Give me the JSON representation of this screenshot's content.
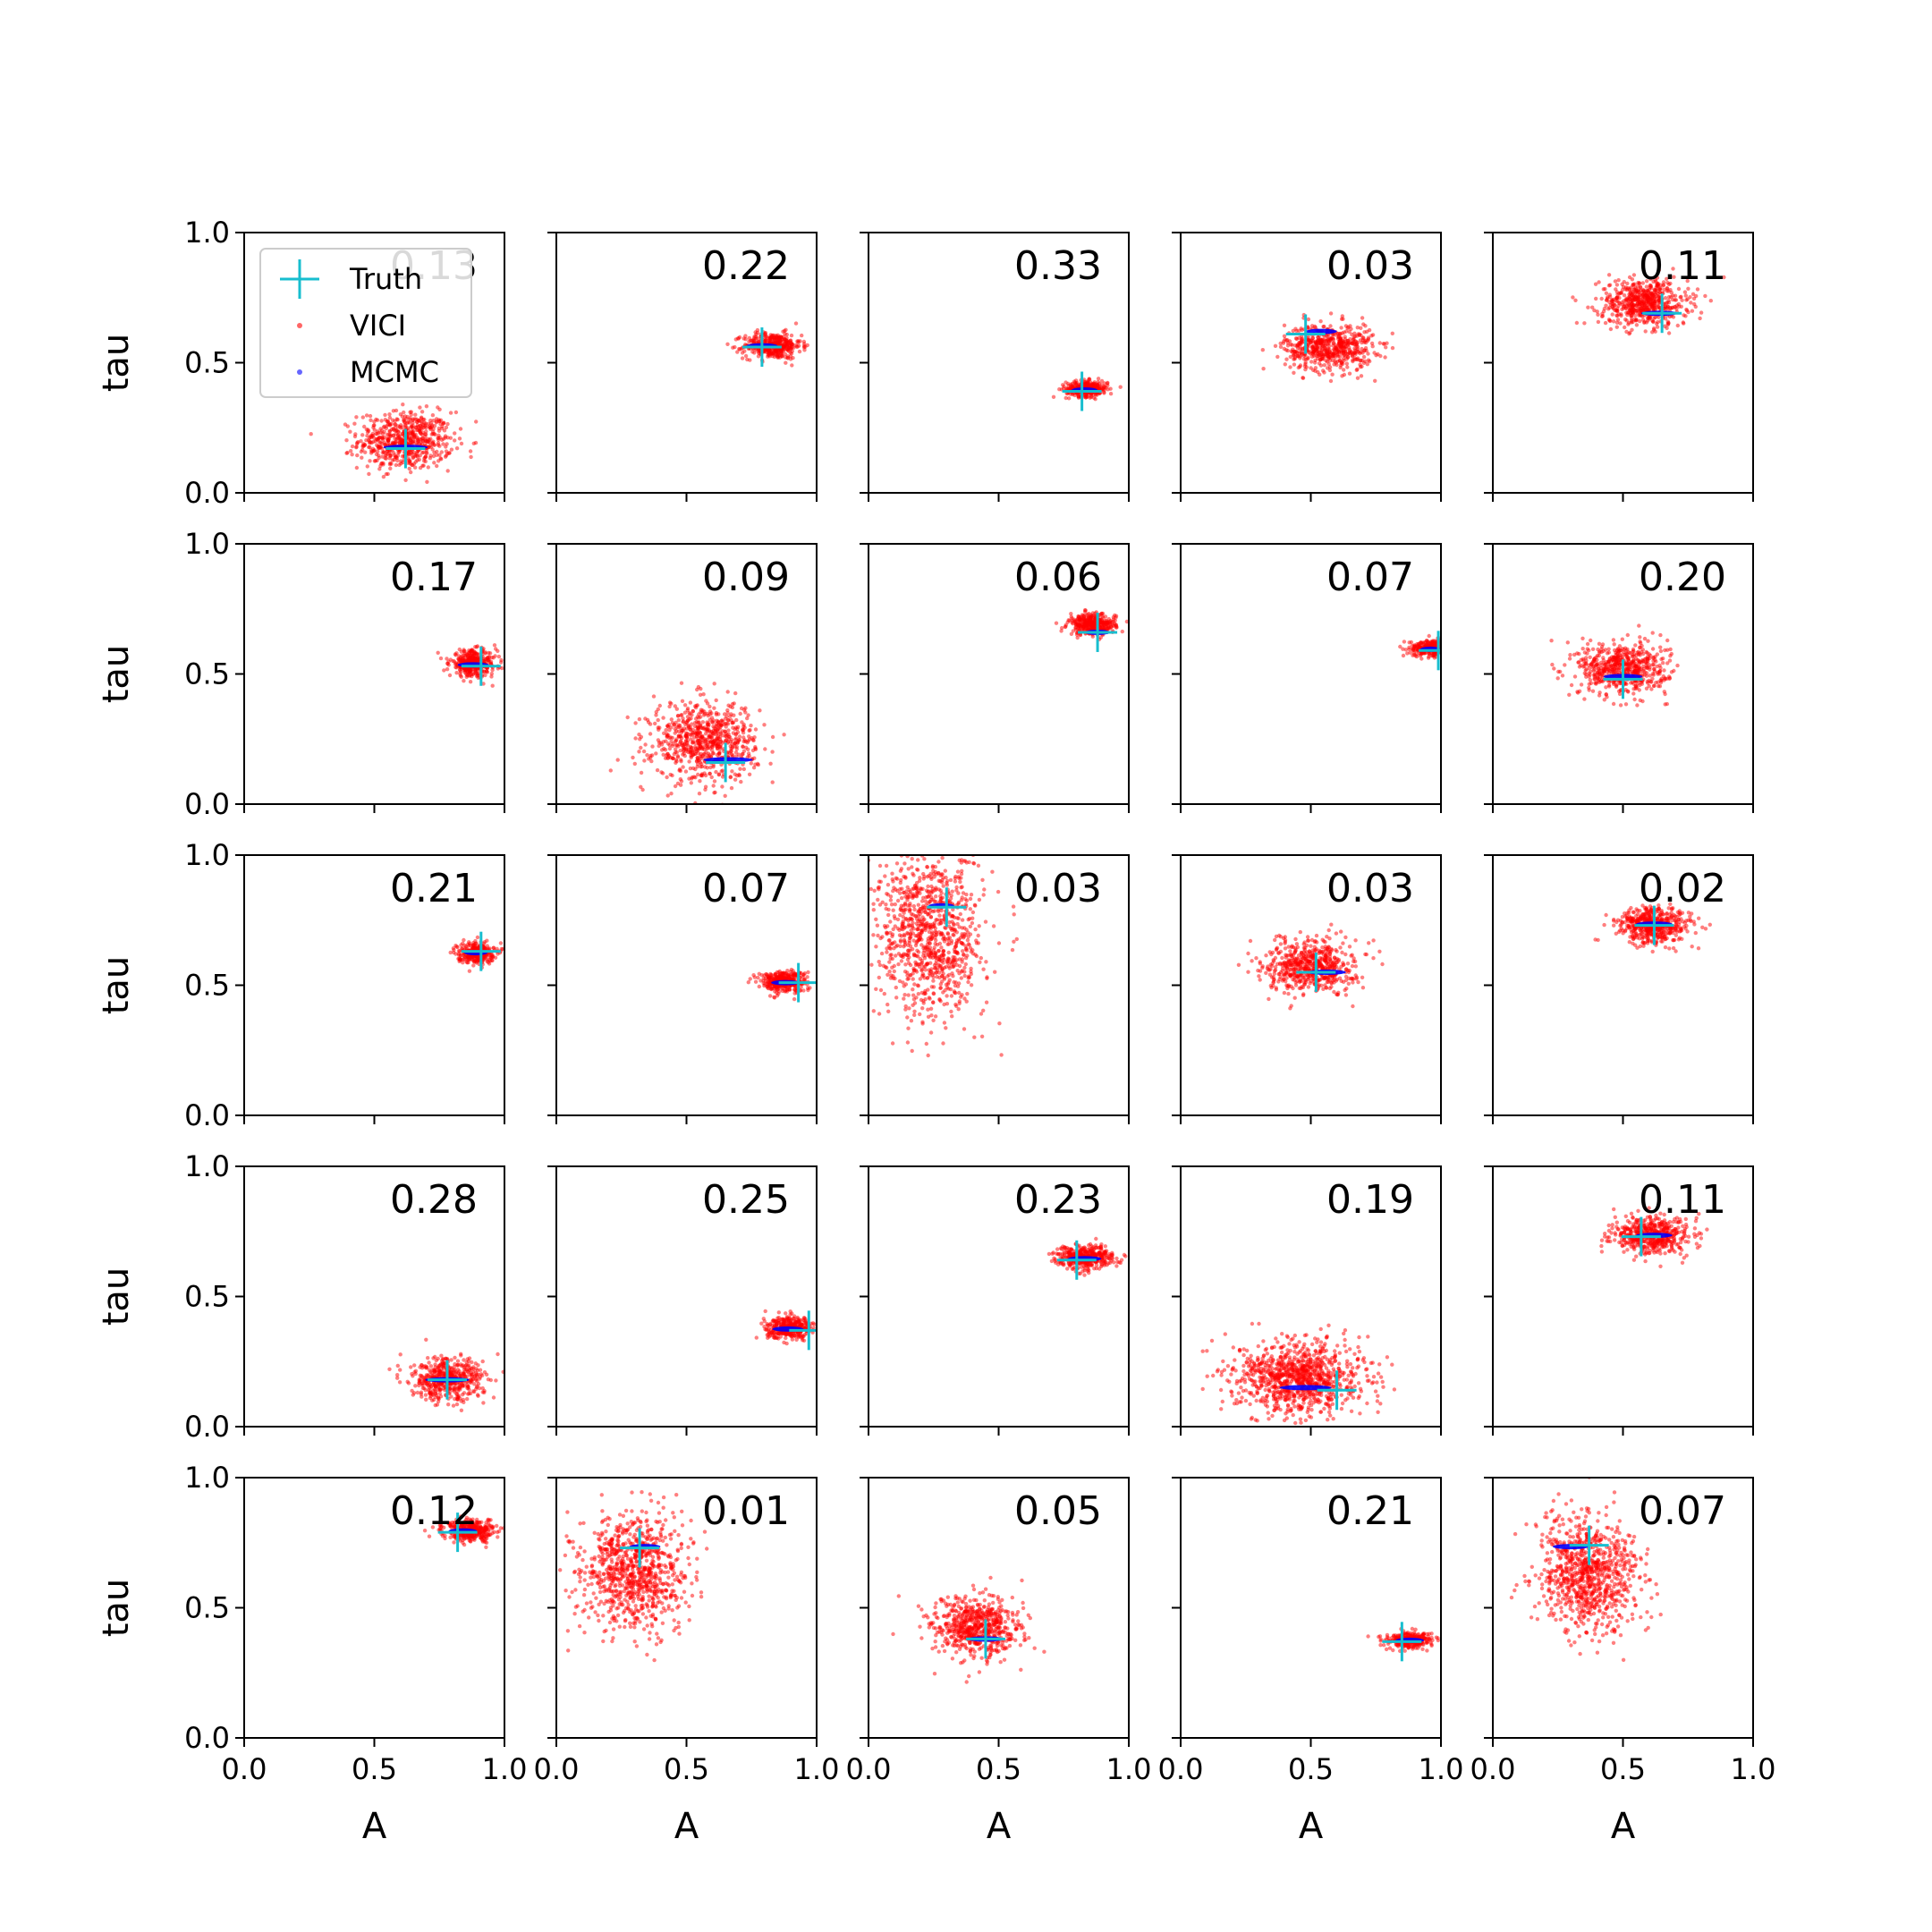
{
  "colors": {
    "vici": "#ff0000",
    "mcmc": "#0000ff",
    "truth": "#17becf",
    "axes": "#000000",
    "legend_border": "#cccccc"
  },
  "legend": {
    "placement": "upper-left of first panel",
    "entries": [
      {
        "label": "Truth",
        "marker": "plus",
        "color": "#17becf"
      },
      {
        "label": "VICI",
        "marker": "dot",
        "color": "#ff0000"
      },
      {
        "label": "MCMC",
        "marker": "dot",
        "color": "#0000ff"
      }
    ]
  },
  "chart_data": {
    "type": "scatter",
    "layout": {
      "rows": 5,
      "cols": 5
    },
    "xlabel": "A",
    "ylabel": "tau",
    "xlim": [
      0,
      1
    ],
    "ylim": [
      0,
      1
    ],
    "xticks": [
      "0.0",
      "0.5",
      "1.0"
    ],
    "yticks": [
      "0.0",
      "0.5",
      "1.0"
    ],
    "grid": false,
    "series_names": [
      "Truth",
      "VICI",
      "MCMC"
    ],
    "panels": [
      {
        "score": "0.13",
        "truth": [
          0.62,
          0.17
        ],
        "vici": {
          "cx": 0.62,
          "cy": 0.2,
          "sx": 0.09,
          "sy": 0.055,
          "n": 650
        },
        "mcmc": {
          "cx": 0.62,
          "cy": 0.175,
          "sx": 0.085,
          "sy": 0.008
        }
      },
      {
        "score": "0.22",
        "truth": [
          0.79,
          0.56
        ],
        "vici": {
          "cx": 0.83,
          "cy": 0.565,
          "sx": 0.055,
          "sy": 0.025,
          "n": 420
        },
        "mcmc": {
          "cx": 0.79,
          "cy": 0.565,
          "sx": 0.06,
          "sy": 0.008
        }
      },
      {
        "score": "0.33",
        "truth": [
          0.82,
          0.39
        ],
        "vici": {
          "cx": 0.84,
          "cy": 0.4,
          "sx": 0.04,
          "sy": 0.015,
          "n": 320
        },
        "mcmc": {
          "cx": 0.83,
          "cy": 0.395,
          "sx": 0.05,
          "sy": 0.006
        }
      },
      {
        "score": "0.03",
        "truth": [
          0.48,
          0.61
        ],
        "vici": {
          "cx": 0.57,
          "cy": 0.56,
          "sx": 0.085,
          "sy": 0.045,
          "n": 600
        },
        "mcmc": {
          "cx": 0.54,
          "cy": 0.62,
          "sx": 0.06,
          "sy": 0.008
        }
      },
      {
        "score": "0.11",
        "truth": [
          0.65,
          0.69
        ],
        "vici": {
          "cx": 0.58,
          "cy": 0.73,
          "sx": 0.085,
          "sy": 0.045,
          "n": 600
        },
        "mcmc": {
          "cx": 0.64,
          "cy": 0.69,
          "sx": 0.07,
          "sy": 0.008
        }
      },
      {
        "score": "0.17",
        "truth": [
          0.91,
          0.53
        ],
        "vici": {
          "cx": 0.88,
          "cy": 0.54,
          "sx": 0.045,
          "sy": 0.025,
          "n": 380
        },
        "mcmc": {
          "cx": 0.88,
          "cy": 0.535,
          "sx": 0.06,
          "sy": 0.008
        }
      },
      {
        "score": "0.09",
        "truth": [
          0.65,
          0.16
        ],
        "vici": {
          "cx": 0.57,
          "cy": 0.24,
          "sx": 0.1,
          "sy": 0.075,
          "n": 750
        },
        "mcmc": {
          "cx": 0.66,
          "cy": 0.17,
          "sx": 0.095,
          "sy": 0.008
        }
      },
      {
        "score": "0.06",
        "truth": [
          0.88,
          0.66
        ],
        "vici": {
          "cx": 0.86,
          "cy": 0.69,
          "sx": 0.045,
          "sy": 0.02,
          "n": 380
        },
        "mcmc": {
          "cx": 0.88,
          "cy": 0.66,
          "sx": 0.05,
          "sy": 0.008
        }
      },
      {
        "score": "0.07",
        "truth": [
          0.99,
          0.59
        ],
        "vici": {
          "cx": 0.96,
          "cy": 0.6,
          "sx": 0.04,
          "sy": 0.015,
          "n": 300
        },
        "mcmc": {
          "cx": 0.96,
          "cy": 0.595,
          "sx": 0.04,
          "sy": 0.006
        }
      },
      {
        "score": "0.20",
        "truth": [
          0.5,
          0.48
        ],
        "vici": {
          "cx": 0.5,
          "cy": 0.52,
          "sx": 0.085,
          "sy": 0.05,
          "n": 620
        },
        "mcmc": {
          "cx": 0.5,
          "cy": 0.49,
          "sx": 0.075,
          "sy": 0.008
        }
      },
      {
        "score": "0.21",
        "truth": [
          0.91,
          0.63
        ],
        "vici": {
          "cx": 0.89,
          "cy": 0.625,
          "sx": 0.035,
          "sy": 0.02,
          "n": 320
        },
        "mcmc": {
          "cx": 0.89,
          "cy": 0.625,
          "sx": 0.045,
          "sy": 0.008
        }
      },
      {
        "score": "0.07",
        "truth": [
          0.93,
          0.51
        ],
        "vici": {
          "cx": 0.87,
          "cy": 0.515,
          "sx": 0.045,
          "sy": 0.02,
          "n": 380
        },
        "mcmc": {
          "cx": 0.88,
          "cy": 0.51,
          "sx": 0.055,
          "sy": 0.008
        }
      },
      {
        "score": "0.03",
        "truth": [
          0.3,
          0.8
        ],
        "vici": {
          "cx": 0.24,
          "cy": 0.69,
          "sx": 0.1,
          "sy": 0.16,
          "n": 1000
        },
        "mcmc": {
          "cx": 0.28,
          "cy": 0.805,
          "sx": 0.05,
          "sy": 0.008
        }
      },
      {
        "score": "0.03",
        "truth": [
          0.52,
          0.55
        ],
        "vici": {
          "cx": 0.5,
          "cy": 0.575,
          "sx": 0.085,
          "sy": 0.05,
          "n": 620
        },
        "mcmc": {
          "cx": 0.56,
          "cy": 0.55,
          "sx": 0.075,
          "sy": 0.008
        }
      },
      {
        "score": "0.02",
        "truth": [
          0.62,
          0.73
        ],
        "vici": {
          "cx": 0.62,
          "cy": 0.73,
          "sx": 0.07,
          "sy": 0.035,
          "n": 520
        },
        "mcmc": {
          "cx": 0.62,
          "cy": 0.735,
          "sx": 0.07,
          "sy": 0.008
        }
      },
      {
        "score": "0.28",
        "truth": [
          0.78,
          0.18
        ],
        "vici": {
          "cx": 0.78,
          "cy": 0.18,
          "sx": 0.07,
          "sy": 0.04,
          "n": 520
        },
        "mcmc": {
          "cx": 0.78,
          "cy": 0.18,
          "sx": 0.085,
          "sy": 0.008
        }
      },
      {
        "score": "0.25",
        "truth": [
          0.97,
          0.37
        ],
        "vici": {
          "cx": 0.9,
          "cy": 0.38,
          "sx": 0.045,
          "sy": 0.02,
          "n": 360
        },
        "mcmc": {
          "cx": 0.89,
          "cy": 0.375,
          "sx": 0.06,
          "sy": 0.008
        }
      },
      {
        "score": "0.23",
        "truth": [
          0.8,
          0.64
        ],
        "vici": {
          "cx": 0.83,
          "cy": 0.65,
          "sx": 0.055,
          "sy": 0.022,
          "n": 420
        },
        "mcmc": {
          "cx": 0.83,
          "cy": 0.645,
          "sx": 0.065,
          "sy": 0.008
        }
      },
      {
        "score": "0.19",
        "truth": [
          0.6,
          0.14
        ],
        "vici": {
          "cx": 0.46,
          "cy": 0.19,
          "sx": 0.12,
          "sy": 0.07,
          "n": 1000
        },
        "mcmc": {
          "cx": 0.48,
          "cy": 0.15,
          "sx": 0.1,
          "sy": 0.01
        }
      },
      {
        "score": "0.11",
        "truth": [
          0.57,
          0.73
        ],
        "vici": {
          "cx": 0.61,
          "cy": 0.735,
          "sx": 0.075,
          "sy": 0.035,
          "n": 520
        },
        "mcmc": {
          "cx": 0.62,
          "cy": 0.735,
          "sx": 0.07,
          "sy": 0.008
        }
      },
      {
        "score": "0.12",
        "truth": [
          0.82,
          0.79
        ],
        "vici": {
          "cx": 0.87,
          "cy": 0.795,
          "sx": 0.05,
          "sy": 0.02,
          "n": 380
        },
        "mcmc": {
          "cx": 0.84,
          "cy": 0.795,
          "sx": 0.055,
          "sy": 0.008
        }
      },
      {
        "score": "0.01",
        "truth": [
          0.32,
          0.73
        ],
        "vici": {
          "cx": 0.3,
          "cy": 0.64,
          "sx": 0.1,
          "sy": 0.11,
          "n": 900
        },
        "mcmc": {
          "cx": 0.34,
          "cy": 0.735,
          "sx": 0.06,
          "sy": 0.008
        }
      },
      {
        "score": "0.05",
        "truth": [
          0.45,
          0.38
        ],
        "vici": {
          "cx": 0.41,
          "cy": 0.42,
          "sx": 0.085,
          "sy": 0.06,
          "n": 650
        },
        "mcmc": {
          "cx": 0.45,
          "cy": 0.38,
          "sx": 0.07,
          "sy": 0.008
        }
      },
      {
        "score": "0.21",
        "truth": [
          0.85,
          0.37
        ],
        "vici": {
          "cx": 0.88,
          "cy": 0.375,
          "sx": 0.045,
          "sy": 0.015,
          "n": 320
        },
        "mcmc": {
          "cx": 0.88,
          "cy": 0.375,
          "sx": 0.055,
          "sy": 0.006
        }
      },
      {
        "score": "0.07",
        "truth": [
          0.37,
          0.74
        ],
        "vici": {
          "cx": 0.37,
          "cy": 0.63,
          "sx": 0.1,
          "sy": 0.11,
          "n": 900
        },
        "mcmc": {
          "cx": 0.3,
          "cy": 0.735,
          "sx": 0.07,
          "sy": 0.008
        }
      }
    ]
  }
}
